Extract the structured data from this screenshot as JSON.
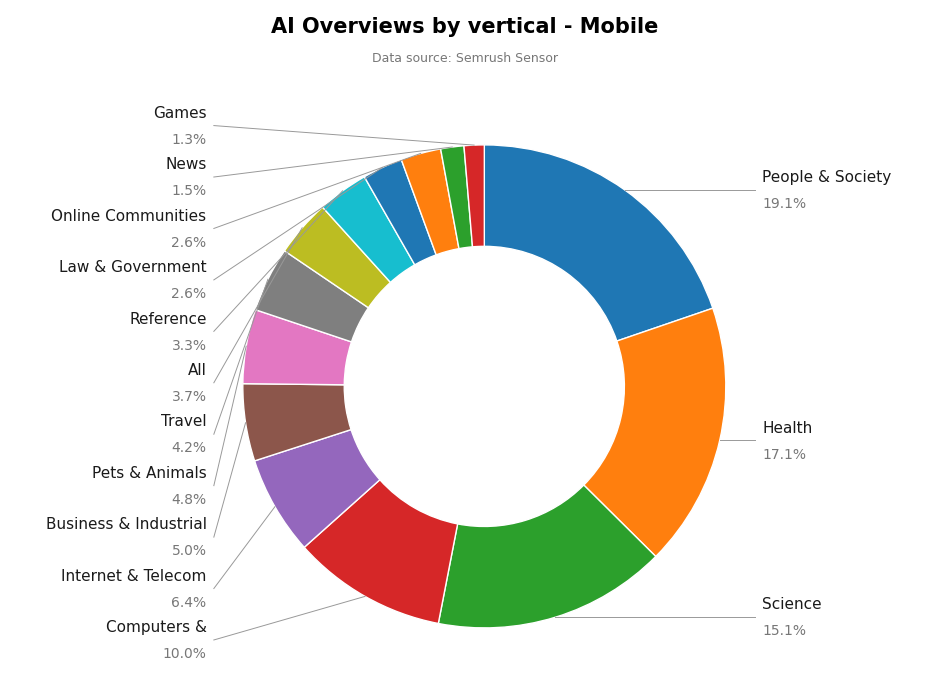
{
  "chart_data": {
    "type": "donut",
    "title": "AI Overviews by vertical - Mobile",
    "subtitle": "Data source: Semrush Sensor",
    "categories": [
      "People & Society",
      "Health",
      "Science",
      "Computers &",
      "Internet & Telecom",
      "Business & Industrial",
      "Pets & Animals",
      "Travel",
      "All",
      "Reference",
      "Law & Government",
      "Online Communities",
      "News",
      "Games"
    ],
    "values": [
      19.1,
      17.1,
      15.1,
      10.0,
      6.4,
      5.0,
      4.8,
      4.2,
      3.7,
      3.3,
      2.6,
      2.6,
      1.5,
      1.3
    ],
    "value_labels": [
      "19.1%",
      "17.1%",
      "15.1%",
      "10.0%",
      "6.4%",
      "5.0%",
      "4.8%",
      "4.2%",
      "3.7%",
      "3.3%",
      "2.6%",
      "2.6%",
      "1.5%",
      "1.3%"
    ]
  }
}
